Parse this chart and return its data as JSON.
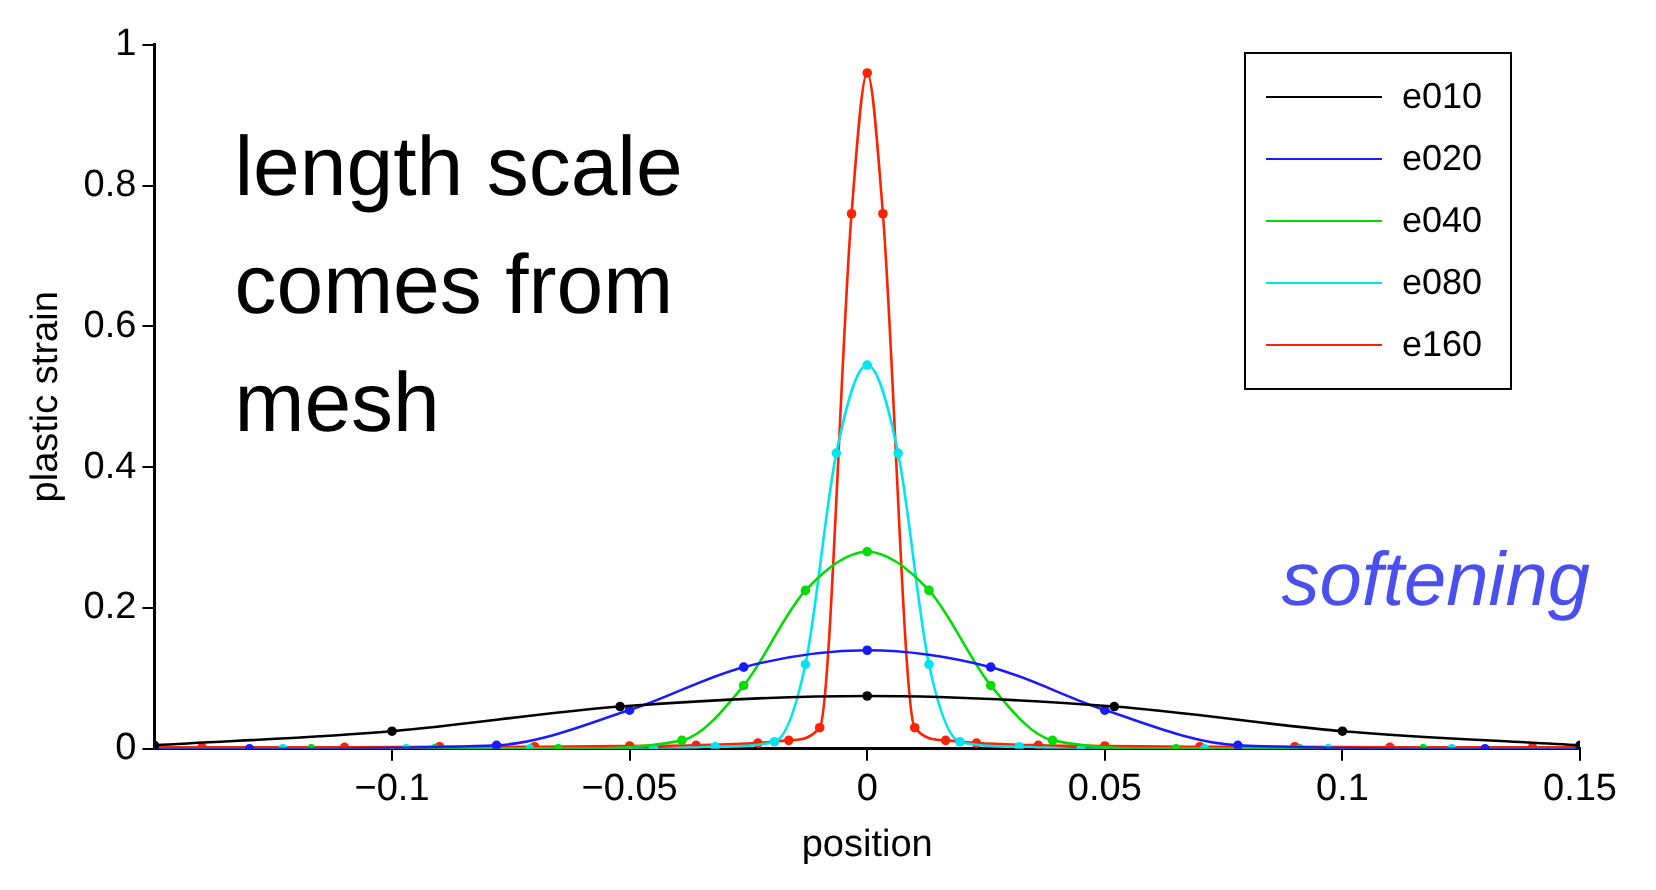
{
  "chart_data": {
    "type": "line",
    "xlabel": "position",
    "ylabel": "plastic strain",
    "xlim": [
      -0.15,
      0.15
    ],
    "xticks": [
      -0.1,
      -0.05,
      0,
      0.05,
      0.1,
      0.15
    ],
    "ylim": [
      0,
      1
    ],
    "yticks": [
      0,
      0.2,
      0.4,
      0.6,
      0.8,
      1
    ],
    "grid": false,
    "legend": "top right",
    "marker": "circle",
    "line_style": "solid",
    "annotations": [
      "length scale\ncomes from\nmesh",
      "softening"
    ],
    "series": [
      {
        "name": "e010",
        "color": "#000000",
        "x": [
          -0.15,
          -0.1,
          -0.052,
          0,
          0.052,
          0.1,
          0.15
        ],
        "values": [
          0.005,
          0.025,
          0.06,
          0.075,
          0.06,
          0.025,
          0.005
        ]
      },
      {
        "name": "e020",
        "color": "#1a1aff",
        "x": [
          -0.15,
          -0.13,
          -0.078,
          -0.05,
          -0.026,
          0,
          0.026,
          0.05,
          0.078,
          0.13,
          0.15
        ],
        "values": [
          0,
          0,
          0.005,
          0.055,
          0.116,
          0.14,
          0.116,
          0.055,
          0.005,
          0,
          0
        ]
      },
      {
        "name": "e040",
        "color": "#00dd00",
        "x": [
          -0.15,
          -0.117,
          -0.091,
          -0.065,
          -0.039,
          -0.026,
          -0.013,
          0,
          0.013,
          0.026,
          0.039,
          0.065,
          0.091,
          0.117,
          0.15
        ],
        "values": [
          0,
          0,
          0,
          0,
          0.012,
          0.09,
          0.225,
          0.28,
          0.225,
          0.09,
          0.012,
          0,
          0,
          0,
          0
        ]
      },
      {
        "name": "e080",
        "color": "#00e5ee",
        "x": [
          -0.15,
          -0.123,
          -0.097,
          -0.071,
          -0.045,
          -0.032,
          -0.0195,
          -0.013,
          -0.0065,
          0,
          0.0065,
          0.013,
          0.0195,
          0.032,
          0.045,
          0.071,
          0.097,
          0.123,
          0.15
        ],
        "values": [
          0,
          0,
          0,
          0,
          0,
          0.003,
          0.01,
          0.12,
          0.42,
          0.545,
          0.42,
          0.12,
          0.01,
          0.003,
          0,
          0,
          0,
          0,
          0
        ]
      },
      {
        "name": "e160",
        "color": "#ff2200",
        "x": [
          -0.15,
          -0.14,
          -0.11,
          -0.09,
          -0.07,
          -0.05,
          -0.036,
          -0.023,
          -0.0165,
          -0.01,
          -0.0033,
          0,
          0.0033,
          0.01,
          0.0165,
          0.023,
          0.036,
          0.05,
          0.07,
          0.09,
          0.11,
          0.14,
          0.15
        ],
        "values": [
          0.002,
          0.002,
          0.002,
          0.003,
          0.003,
          0.004,
          0.005,
          0.008,
          0.012,
          0.03,
          0.76,
          0.96,
          0.76,
          0.03,
          0.012,
          0.008,
          0.005,
          0.004,
          0.003,
          0.003,
          0.002,
          0.002,
          0.002
        ]
      }
    ]
  }
}
